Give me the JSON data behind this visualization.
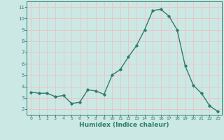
{
  "x": [
    0,
    1,
    2,
    3,
    4,
    5,
    6,
    7,
    8,
    9,
    10,
    11,
    12,
    13,
    14,
    15,
    16,
    17,
    18,
    19,
    20,
    21,
    22,
    23
  ],
  "y": [
    3.5,
    3.4,
    3.4,
    3.1,
    3.2,
    2.5,
    2.6,
    3.7,
    3.6,
    3.3,
    5.0,
    5.5,
    6.6,
    7.6,
    9.0,
    10.7,
    10.8,
    10.2,
    9.0,
    5.8,
    4.1,
    3.4,
    2.3,
    1.8
  ],
  "line_color": "#2e7d6e",
  "marker": "D",
  "marker_size": 1.8,
  "linewidth": 1.0,
  "background_color": "#cce8e4",
  "grid_color": "#e8c8c8",
  "tick_color": "#2e7d6e",
  "label_color": "#2e7d6e",
  "xlabel": "Humidex (Indice chaleur)",
  "xlabel_fontsize": 6.5,
  "ylim": [
    1.5,
    11.5
  ],
  "xlim": [
    -0.5,
    23.5
  ],
  "yticks": [
    2,
    3,
    4,
    5,
    6,
    7,
    8,
    9,
    10,
    11
  ],
  "xticks": [
    0,
    1,
    2,
    3,
    4,
    5,
    6,
    7,
    8,
    9,
    10,
    11,
    12,
    13,
    14,
    15,
    16,
    17,
    18,
    19,
    20,
    21,
    22,
    23
  ]
}
